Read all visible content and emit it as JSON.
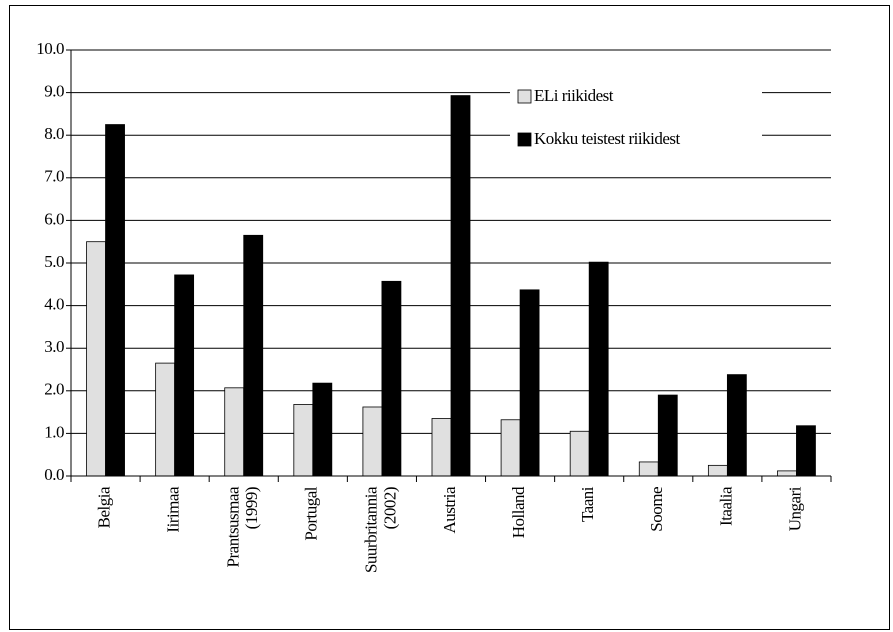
{
  "chart_data": {
    "type": "bar",
    "categories": [
      "Belgia",
      "Iirimaa",
      "Prantsusmaa\n(1999)",
      "Portugal",
      "Suurbritannia\n(2002)",
      "Austria",
      "Holland",
      "Taani",
      "Soome",
      "Itaalia",
      "Ungari"
    ],
    "series": [
      {
        "name": "ELi riikidest",
        "color": "#e0e0e0",
        "values": [
          5.5,
          2.65,
          2.07,
          1.68,
          1.62,
          1.35,
          1.32,
          1.05,
          0.33,
          0.25,
          0.12
        ]
      },
      {
        "name": "Kokku teistest riikidest",
        "color": "#000000",
        "values": [
          8.25,
          4.72,
          5.65,
          2.18,
          4.57,
          8.93,
          4.37,
          5.02,
          1.9,
          2.38,
          1.18
        ]
      }
    ],
    "ylim": [
      0,
      10
    ],
    "yticks": [
      {
        "value": 0,
        "label": "0.0"
      },
      {
        "value": 1,
        "label": "1.0"
      },
      {
        "value": 2,
        "label": "2.0"
      },
      {
        "value": 3,
        "label": "3.0"
      },
      {
        "value": 4,
        "label": "4.0"
      },
      {
        "value": 5,
        "label": "5.0"
      },
      {
        "value": 6,
        "label": "6.0"
      },
      {
        "value": 7,
        "label": "7.0"
      },
      {
        "value": 8,
        "label": "8.0"
      },
      {
        "value": 9,
        "label": "9.0"
      },
      {
        "value": 10,
        "label": "10.0"
      }
    ],
    "grid": true,
    "legend": "top-right"
  }
}
